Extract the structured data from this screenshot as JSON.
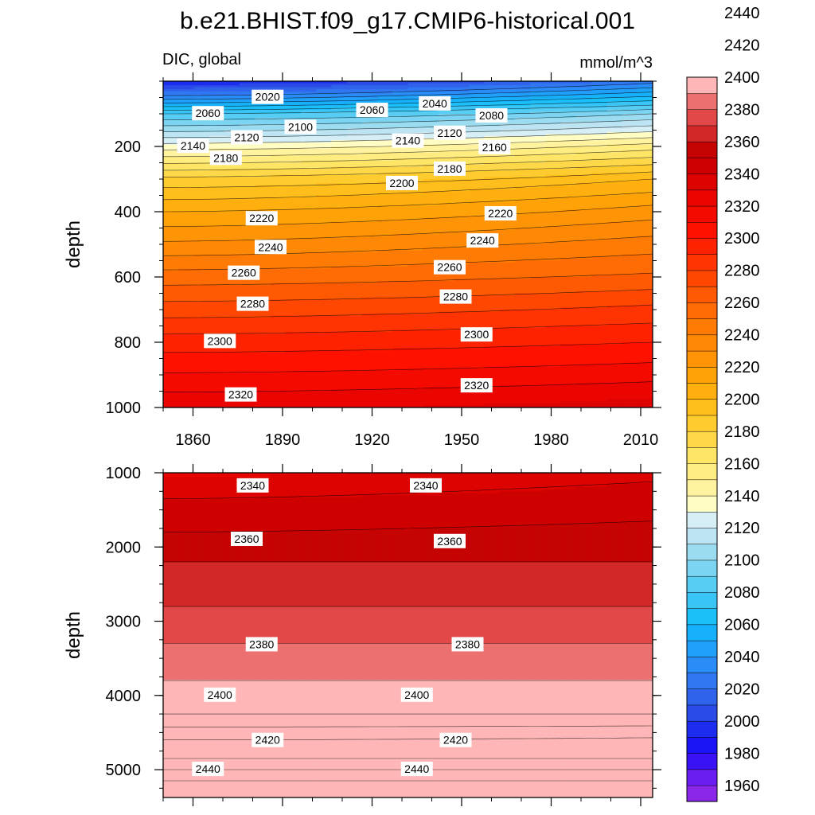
{
  "figure": {
    "title": "b.e21.BHIST.f09_g17.CMIP6-historical.001",
    "subtitle_left": "DIC, global",
    "subtitle_right": "mmol/m^3"
  },
  "chart_data": [
    {
      "type": "heatmap",
      "panel": "upper",
      "variable": "DIC",
      "units": "mmol/m^3",
      "x_range": [
        1850,
        2014
      ],
      "y_range": [
        0,
        1000
      ],
      "y_inverted": true,
      "ylabel": "depth",
      "xticks": [
        1860,
        1890,
        1920,
        1950,
        1980,
        2010
      ],
      "yticks": [
        200,
        400,
        600,
        800,
        1000
      ],
      "contour_interval": 10,
      "profile_early": {
        "depth": [
          0,
          100,
          200,
          300,
          400,
          500,
          600,
          700,
          800,
          900,
          1000
        ],
        "value": [
          1990,
          2080,
          2135,
          2183,
          2210,
          2232,
          2255,
          2275,
          2295,
          2311,
          2328
        ]
      },
      "profile_late": {
        "depth": [
          0,
          100,
          200,
          300,
          400,
          500,
          600,
          700,
          800,
          900,
          1000
        ],
        "value": [
          2025,
          2100,
          2155,
          2200,
          2225,
          2245,
          2262,
          2283,
          2300,
          2316,
          2335
        ]
      },
      "contour_labels": [
        {
          "value": "2020",
          "x": 1885,
          "y": 48
        },
        {
          "value": "2060",
          "x": 1865,
          "y": 98
        },
        {
          "value": "2060",
          "x": 1920,
          "y": 88
        },
        {
          "value": "2040",
          "x": 1941,
          "y": 68
        },
        {
          "value": "2080",
          "x": 1960,
          "y": 105
        },
        {
          "value": "2100",
          "x": 1896,
          "y": 140
        },
        {
          "value": "2120",
          "x": 1878,
          "y": 172
        },
        {
          "value": "2120",
          "x": 1946,
          "y": 158
        },
        {
          "value": "2140",
          "x": 1860,
          "y": 198
        },
        {
          "value": "2140",
          "x": 1932,
          "y": 182
        },
        {
          "value": "2160",
          "x": 1961,
          "y": 202
        },
        {
          "value": "2180",
          "x": 1871,
          "y": 235
        },
        {
          "value": "2180",
          "x": 1946,
          "y": 268
        },
        {
          "value": "2200",
          "x": 1930,
          "y": 312
        },
        {
          "value": "2220",
          "x": 1883,
          "y": 420
        },
        {
          "value": "2220",
          "x": 1963,
          "y": 405
        },
        {
          "value": "2240",
          "x": 1886,
          "y": 508
        },
        {
          "value": "2240",
          "x": 1957,
          "y": 488
        },
        {
          "value": "2260",
          "x": 1877,
          "y": 587
        },
        {
          "value": "2260",
          "x": 1946,
          "y": 570
        },
        {
          "value": "2280",
          "x": 1880,
          "y": 682
        },
        {
          "value": "2280",
          "x": 1948,
          "y": 660
        },
        {
          "value": "2300",
          "x": 1869,
          "y": 796
        },
        {
          "value": "2300",
          "x": 1955,
          "y": 776
        },
        {
          "value": "2320",
          "x": 1876,
          "y": 960
        },
        {
          "value": "2320",
          "x": 1955,
          "y": 932
        }
      ]
    },
    {
      "type": "heatmap",
      "panel": "lower",
      "variable": "DIC",
      "units": "mmol/m^3",
      "x_range": [
        1850,
        2014
      ],
      "y_range": [
        1000,
        5375
      ],
      "y_inverted": true,
      "ylabel": "depth",
      "yticks": [
        1000,
        2000,
        3000,
        4000,
        5000
      ],
      "contour_interval": 10,
      "profile_early": {
        "depth": [
          1000,
          1350,
          1800,
          2200,
          2800,
          3300,
          3800,
          4250,
          4600,
          4850,
          5000,
          5150,
          5375
        ],
        "value": [
          2328,
          2340,
          2350,
          2360,
          2370,
          2380,
          2390,
          2400,
          2420,
          2430,
          2440,
          2450,
          2450
        ]
      },
      "profile_late": {
        "depth": [
          1000,
          1120,
          1650,
          2200,
          2800,
          3300,
          3800,
          4250,
          4570,
          4850,
          5000,
          5150,
          5375
        ],
        "value": [
          2335,
          2340,
          2350,
          2360,
          2370,
          2380,
          2390,
          2400,
          2420,
          2430,
          2440,
          2450,
          2450
        ]
      },
      "contour_labels": [
        {
          "value": "2340",
          "x": 1880,
          "y": 1170
        },
        {
          "value": "2340",
          "x": 1938,
          "y": 1170
        },
        {
          "value": "2360",
          "x": 1878,
          "y": 1890
        },
        {
          "value": "2360",
          "x": 1946,
          "y": 1920
        },
        {
          "value": "2380",
          "x": 1883,
          "y": 3310
        },
        {
          "value": "2380",
          "x": 1952,
          "y": 3310
        },
        {
          "value": "2400",
          "x": 1869,
          "y": 3990
        },
        {
          "value": "2400",
          "x": 1935,
          "y": 3990
        },
        {
          "value": "2420",
          "x": 1885,
          "y": 4600
        },
        {
          "value": "2420",
          "x": 1948,
          "y": 4600
        },
        {
          "value": "2440",
          "x": 1865,
          "y": 4990
        },
        {
          "value": "2440",
          "x": 1935,
          "y": 4990
        }
      ]
    }
  ],
  "colorbar": {
    "min": 1950,
    "max": 2450,
    "step": 10,
    "labels": [
      "1960",
      "1980",
      "2000",
      "2020",
      "2040",
      "2060",
      "2080",
      "2100",
      "2120",
      "2140",
      "2160",
      "2180",
      "2200",
      "2220",
      "2240",
      "2260",
      "2280",
      "2300",
      "2320",
      "2340",
      "2360",
      "2380",
      "2400",
      "2420",
      "2440"
    ],
    "colors": [
      "#8a27e8",
      "#6a1ff0",
      "#3a12f5",
      "#1a14f7",
      "#1c2df0",
      "#2b4be8",
      "#2f63ec",
      "#3078f2",
      "#2a8cf6",
      "#1ea0fb",
      "#17b0fb",
      "#1bbffa",
      "#39c6f6",
      "#58cdf4",
      "#7ad4f2",
      "#9cdcf0",
      "#bde4f2",
      "#d6eef6",
      "#fffcc4",
      "#fff3a0",
      "#ffed82",
      "#ffe565",
      "#ffd84a",
      "#ffcc30",
      "#ffbe1c",
      "#ffb00e",
      "#ffa208",
      "#ff9506",
      "#ff8805",
      "#ff7b04",
      "#ff6c03",
      "#ff5a02",
      "#ff4702",
      "#ff3402",
      "#ff2201",
      "#ff1100",
      "#f50a00",
      "#ea0500",
      "#dd0300",
      "#cf0000",
      "#c60303",
      "#d42828",
      "#e24848",
      "#ed7070",
      "#ffb6b6"
    ]
  }
}
